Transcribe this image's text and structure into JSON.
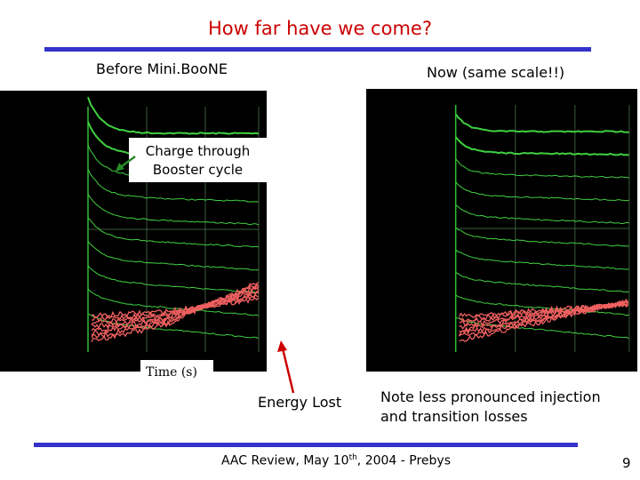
{
  "title": "How far have we come?",
  "left_label": "Before Mini.BooNE",
  "right_label": "Now (same scale!!)",
  "callouts": {
    "charge": [
      "Charge through",
      "Booster cycle"
    ],
    "time": "Time (s)",
    "energy": "Energy Lost"
  },
  "note": [
    "Note less pronounced injection",
    "and transition losses"
  ],
  "footer": {
    "parts": [
      "AAC Review, May 10",
      "th",
      ", 2004 - Prebys"
    ],
    "page": "9"
  }
}
